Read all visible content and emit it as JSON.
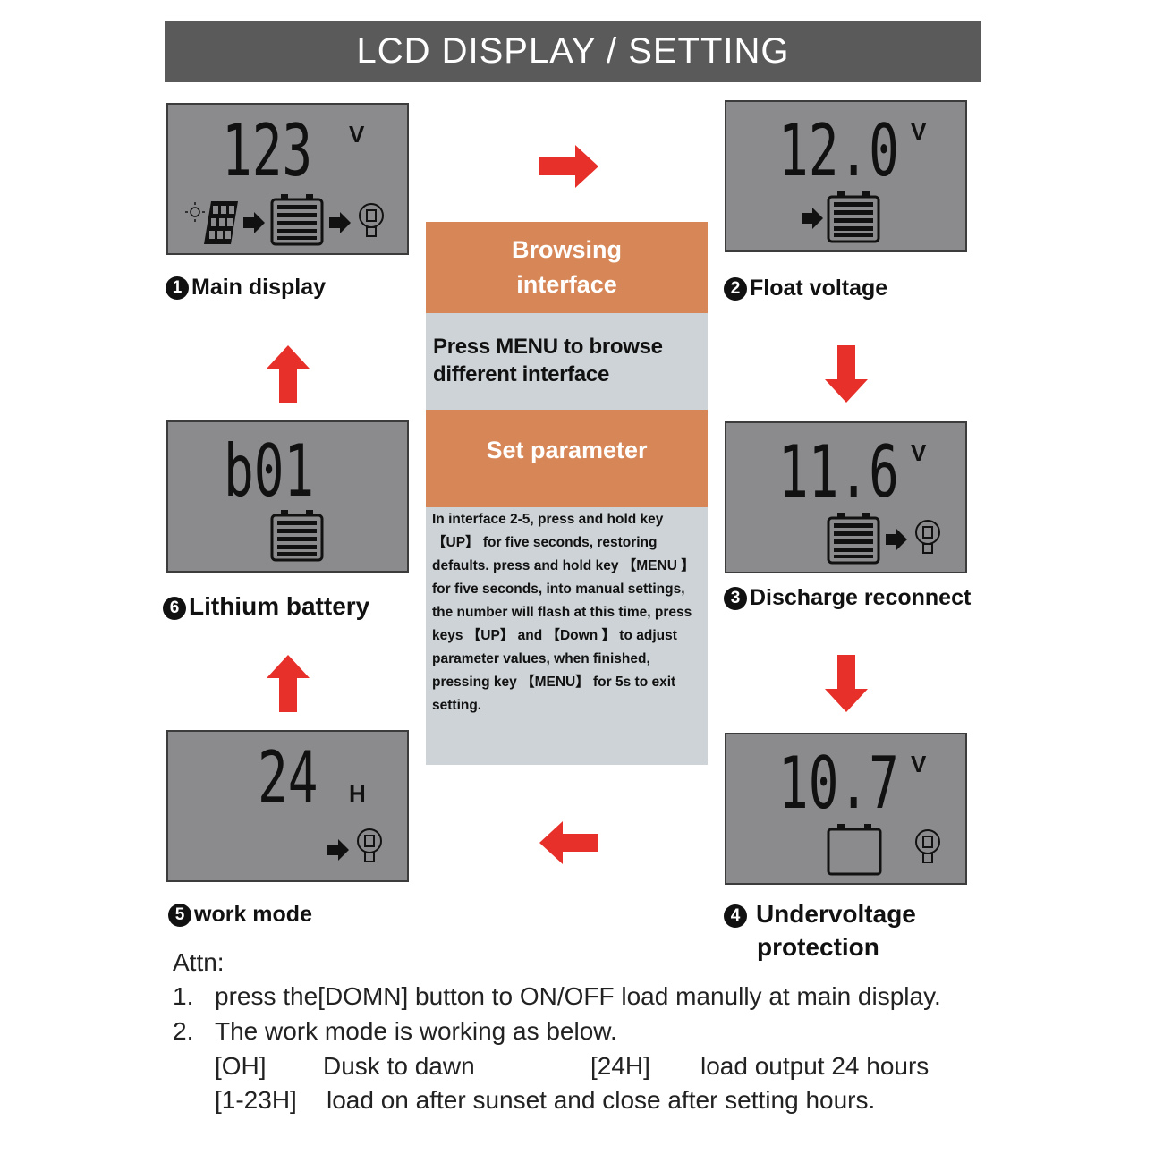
{
  "header": {
    "title": "LCD DISPLAY / SETTING"
  },
  "panels": [
    {
      "number": "1",
      "label": "Main display",
      "value": "123",
      "unit": "V"
    },
    {
      "number": "2",
      "label": "Float voltage",
      "value": "12.0",
      "unit": "V"
    },
    {
      "number": "3",
      "label": "Discharge reconnect",
      "value": "11.6",
      "unit": "V"
    },
    {
      "number": "4",
      "label": "Undervoltage protection",
      "label_line1": "Undervoltage",
      "label_line2": "protection",
      "value": "10.7",
      "unit": "V"
    },
    {
      "number": "5",
      "label": "work mode",
      "value": "24",
      "unit": "H"
    },
    {
      "number": "6",
      "label": "Lithium battery",
      "value": "b01",
      "unit": ""
    }
  ],
  "center": {
    "browsing_title": "Browsing interface",
    "browsing_text": "Press MENU to browse different interface",
    "set_title": "Set parameter",
    "set_text": "In interface 2-5, press and hold key 【UP】 for five seconds, restoring defaults. press and hold  key 【MENU 】 for five seconds, into manual settings, the number will flash at this time, press keys 【UP】 and 【Down 】 to adjust  parameter values, when finished, pressing  key 【MENU】 for 5s to exit  setting."
  },
  "attn": {
    "title": "Attn:",
    "items": [
      {
        "n": "1.",
        "text": "press the[DOMN] button to ON/OFF load manully at main display."
      },
      {
        "n": "2.",
        "text": "The work mode is working as below."
      }
    ],
    "modes": [
      {
        "code": "[OH]",
        "desc": "Dusk to dawn"
      },
      {
        "code": "[24H]",
        "desc": "load output 24 hours"
      },
      {
        "code": "[1-23H]",
        "desc": "load on after sunset and close after setting hours."
      }
    ]
  },
  "colors": {
    "header": "#5a5a5a",
    "orange": "#d78757",
    "panel": "#cdd3d6",
    "lcd": "#8b8b8d",
    "arrow": "#e8302a"
  }
}
